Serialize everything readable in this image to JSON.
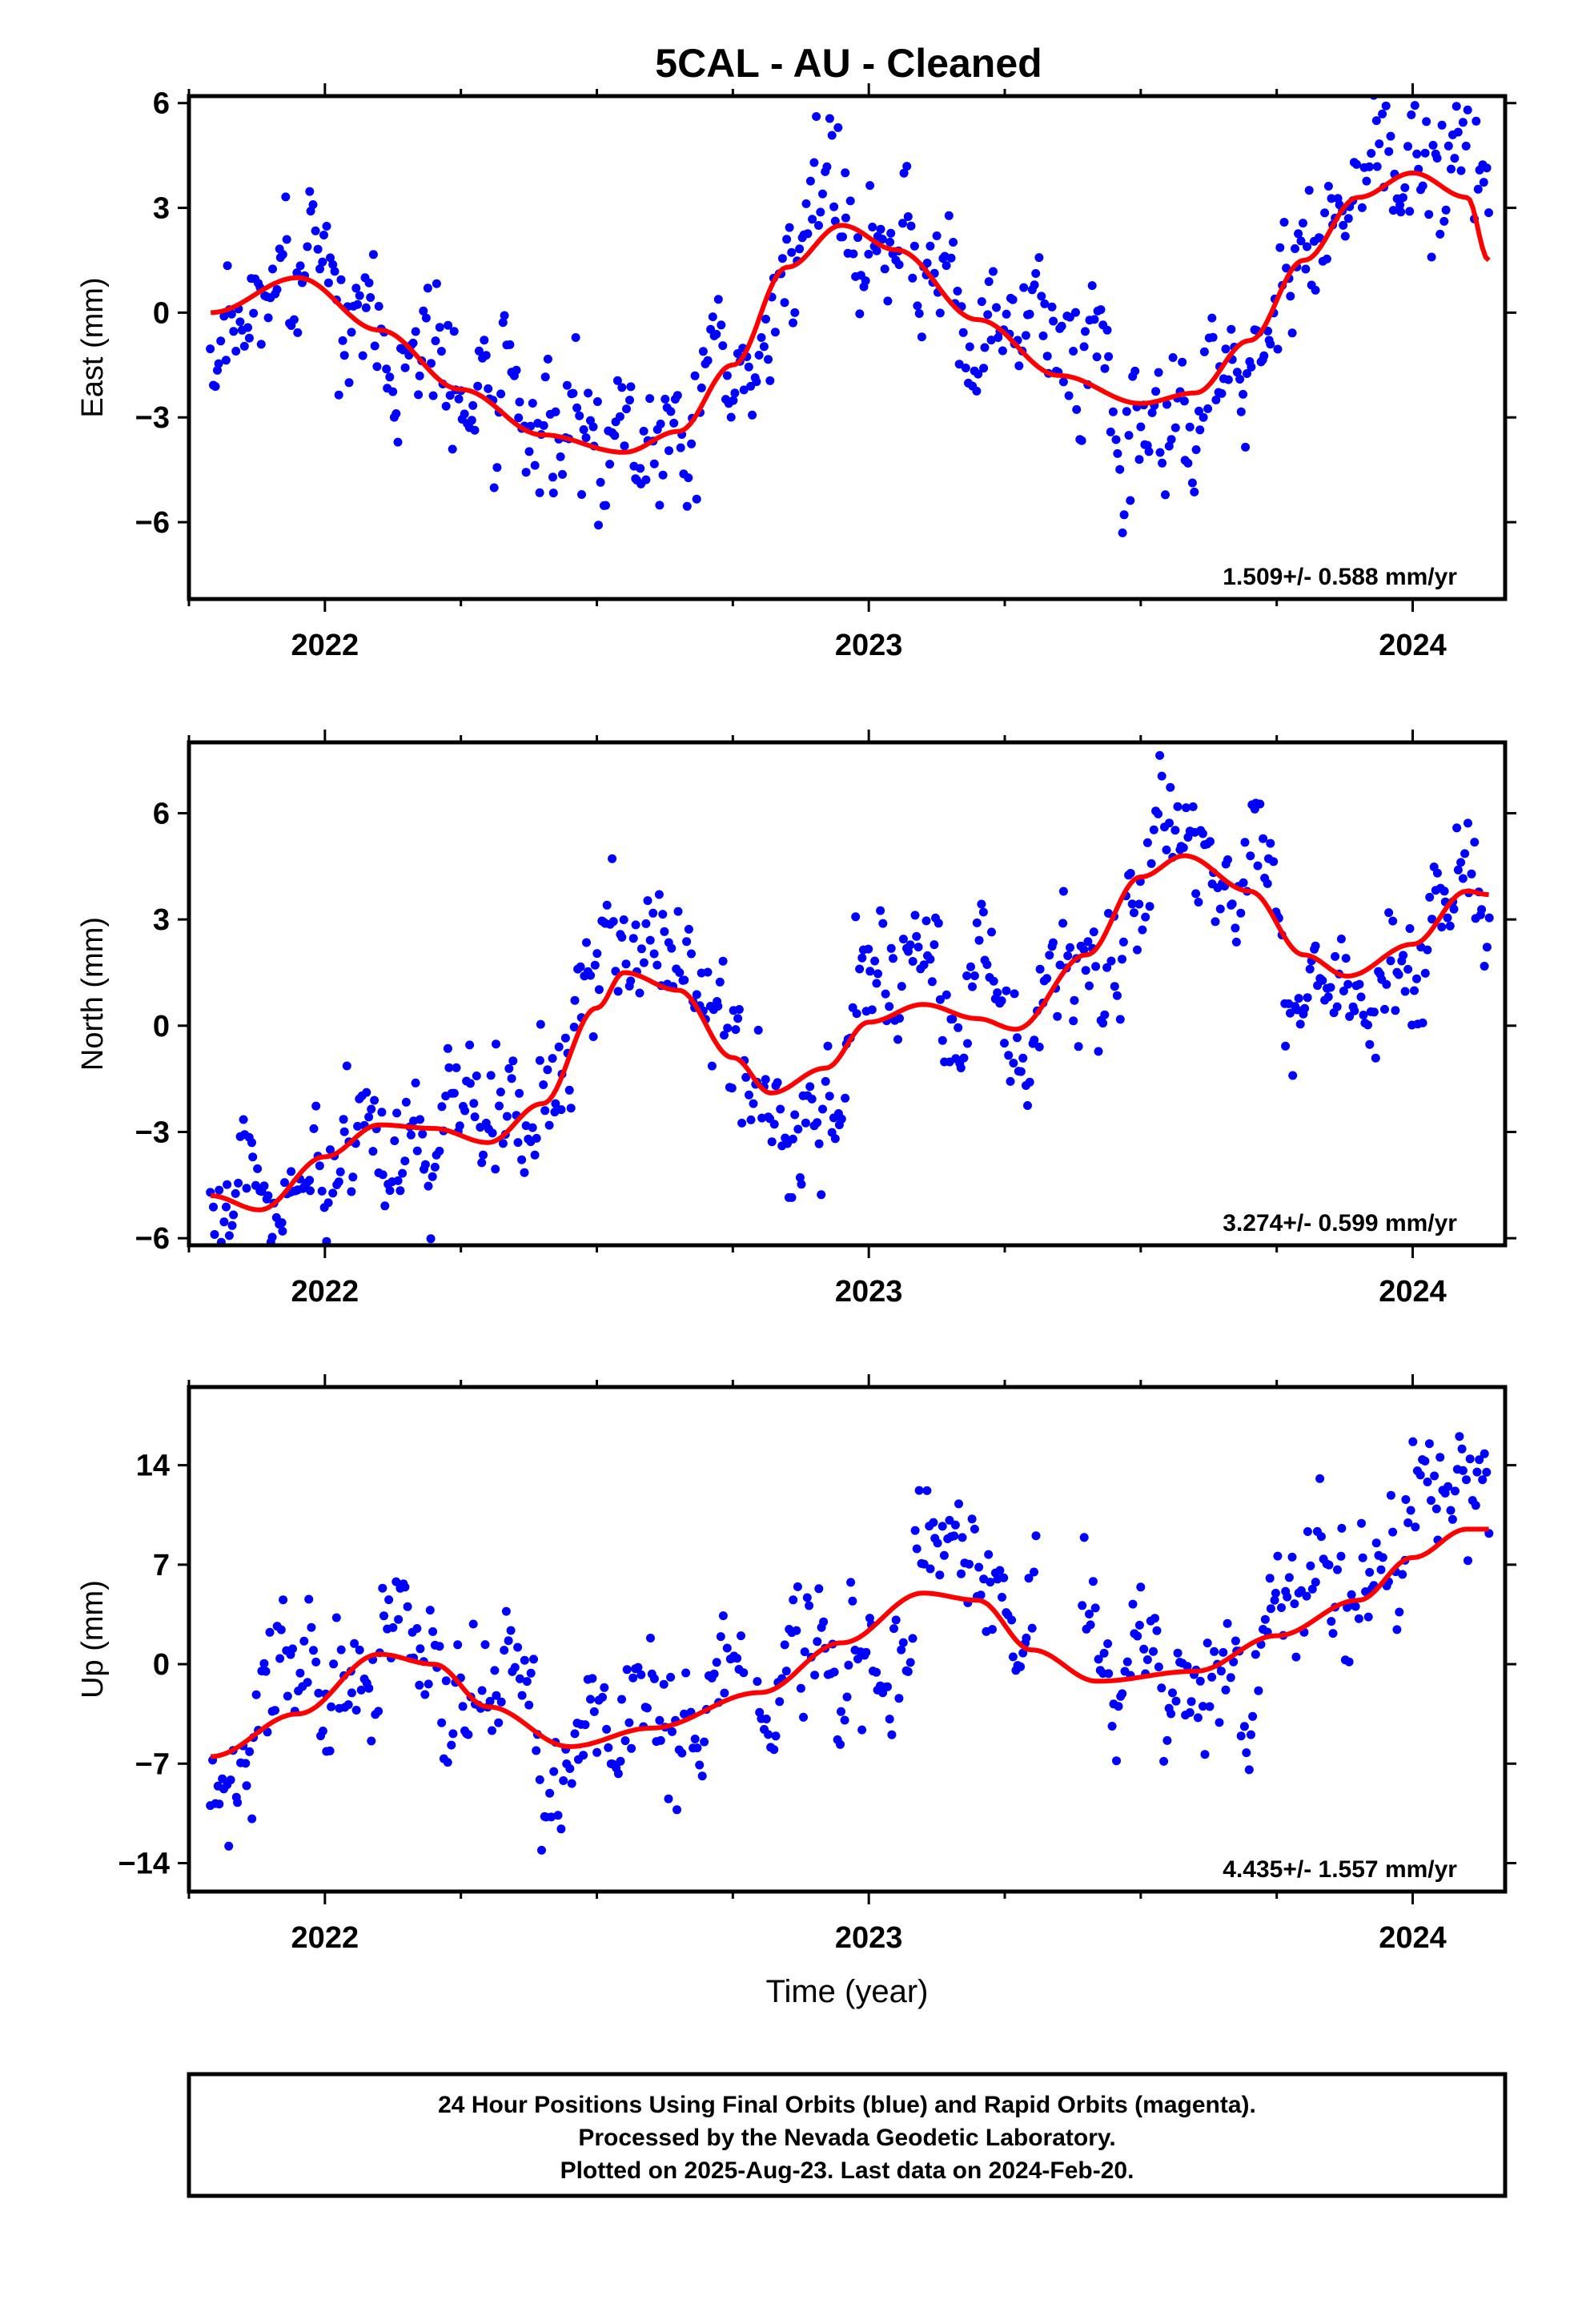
{
  "title": "5CAL  - AU - Cleaned",
  "footer": {
    "lines": [
      "24 Hour Positions Using Final Orbits (blue) and Rapid Orbits (magenta).",
      "Processed by the Nevada Geodetic Laboratory.",
      "Plotted on 2025-Aug-23. Last data on 2024-Feb-20."
    ]
  },
  "colors": {
    "points": "#0000ff",
    "model": "#ff0000",
    "frame": "#000000"
  },
  "chart_data": [
    {
      "type": "scatter",
      "ylabel": "East (mm)",
      "xlabel": "",
      "xlim": [
        2021.75,
        2024.17
      ],
      "ylim": [
        -8.2,
        6.2
      ],
      "yticks": [
        -6,
        -3,
        0,
        3,
        6
      ],
      "xticks": [
        2022,
        2023,
        2024
      ],
      "annotation": "1.509+/- 0.588 mm/yr",
      "fit": {
        "x": [
          2021.79,
          2021.95,
          2022.1,
          2022.25,
          2022.4,
          2022.55,
          2022.65,
          2022.75,
          2022.85,
          2022.95,
          2023.05,
          2023.2,
          2023.35,
          2023.5,
          2023.6,
          2023.7,
          2023.8,
          2023.9,
          2024.0,
          2024.1,
          2024.14
        ],
        "y": [
          0.0,
          1.0,
          -0.5,
          -2.2,
          -3.5,
          -4.0,
          -3.4,
          -1.5,
          1.3,
          2.5,
          1.8,
          -0.2,
          -1.8,
          -2.6,
          -2.3,
          -0.8,
          1.5,
          3.3,
          4.0,
          3.3,
          1.5
        ]
      },
      "scatter": {
        "count": 600,
        "amplitude": 2.6,
        "seed": 11
      }
    },
    {
      "type": "scatter",
      "ylabel": "North (mm)",
      "xlabel": "",
      "xlim": [
        2021.75,
        2024.17
      ],
      "ylim": [
        -6.2,
        8.0
      ],
      "yticks": [
        -6,
        -3,
        0,
        3,
        6
      ],
      "xticks": [
        2022,
        2023,
        2024
      ],
      "annotation": "3.274+/- 0.599 mm/yr",
      "fit": {
        "x": [
          2021.79,
          2021.88,
          2022.0,
          2022.1,
          2022.2,
          2022.3,
          2022.4,
          2022.5,
          2022.55,
          2022.65,
          2022.75,
          2022.82,
          2022.92,
          2023.0,
          2023.1,
          2023.2,
          2023.27,
          2023.4,
          2023.5,
          2023.58,
          2023.7,
          2023.8,
          2023.88,
          2024.0,
          2024.1,
          2024.14
        ],
        "y": [
          -4.8,
          -5.2,
          -3.7,
          -2.8,
          -2.9,
          -3.3,
          -2.2,
          0.5,
          1.5,
          1.0,
          -0.9,
          -1.9,
          -1.2,
          0.1,
          0.6,
          0.2,
          -0.1,
          2.0,
          4.2,
          4.8,
          3.8,
          2.0,
          1.4,
          2.3,
          3.8,
          3.7
        ]
      },
      "scatter": {
        "count": 600,
        "amplitude": 2.2,
        "seed": 23
      }
    },
    {
      "type": "scatter",
      "ylabel": "Up (mm)",
      "xlabel": "Time (year)",
      "xlim": [
        2021.75,
        2024.17
      ],
      "ylim": [
        -16,
        19.5
      ],
      "yticks": [
        -14,
        -7,
        0,
        7,
        14
      ],
      "xticks": [
        2022,
        2023,
        2024
      ],
      "annotation": "4.435+/- 1.557 mm/yr",
      "fit": {
        "x": [
          2021.79,
          2021.95,
          2022.1,
          2022.2,
          2022.3,
          2022.45,
          2022.6,
          2022.8,
          2022.95,
          2023.1,
          2023.2,
          2023.3,
          2023.42,
          2023.6,
          2023.75,
          2023.9,
          2024.0,
          2024.1,
          2024.14
        ],
        "y": [
          -6.5,
          -3.5,
          0.7,
          0.0,
          -3.0,
          -5.8,
          -4.5,
          -2.0,
          1.5,
          5.0,
          4.5,
          1.0,
          -1.2,
          -0.5,
          2.0,
          4.5,
          7.5,
          9.5,
          9.5
        ]
      },
      "scatter": {
        "count": 560,
        "amplitude": 6.0,
        "seed": 37
      }
    }
  ]
}
